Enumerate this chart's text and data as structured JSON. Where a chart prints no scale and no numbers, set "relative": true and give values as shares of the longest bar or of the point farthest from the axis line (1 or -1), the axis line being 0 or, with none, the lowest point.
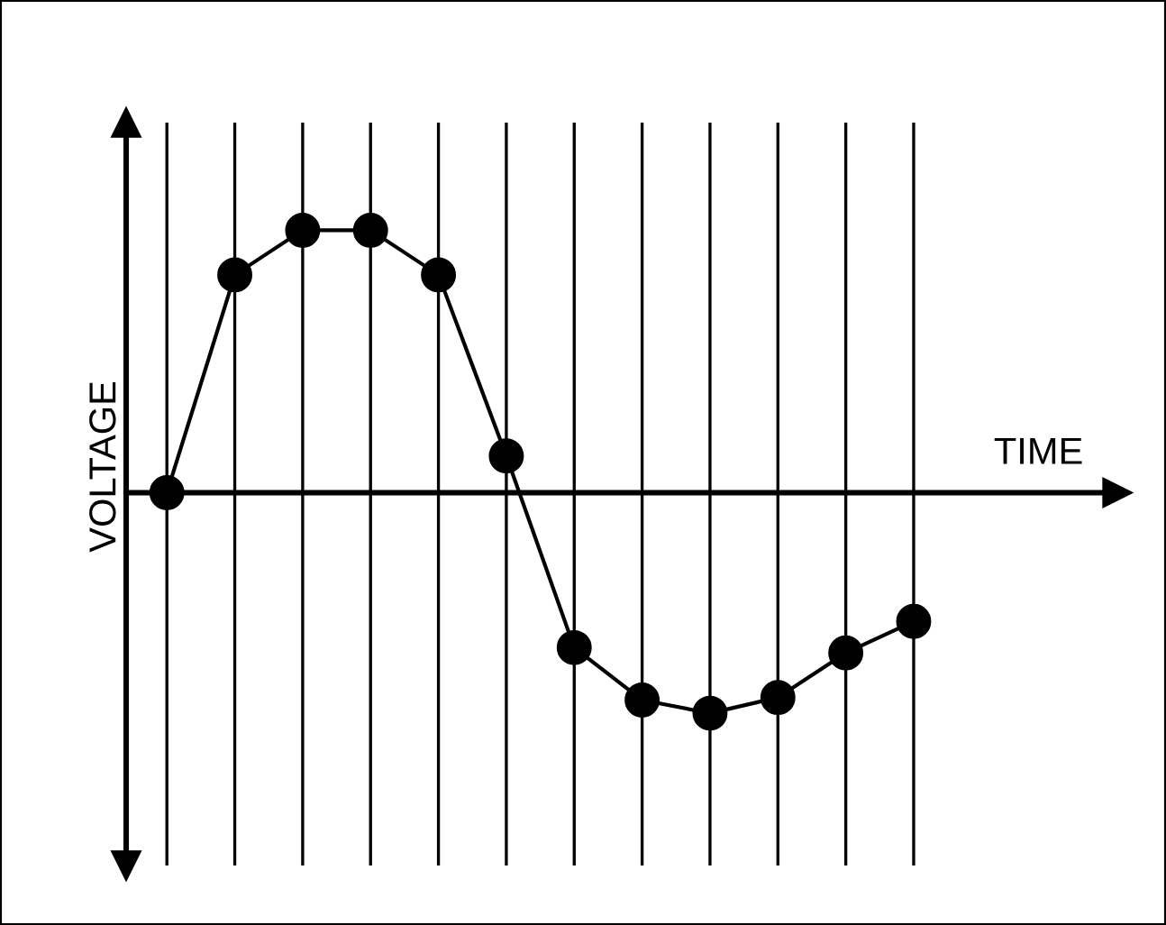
{
  "chart_data": {
    "type": "line",
    "relative": true,
    "xlabel": "TIME",
    "ylabel": "VOLTAGE",
    "grid": "x",
    "marker": "circle",
    "categories": [
      null,
      null,
      null,
      null,
      null,
      null,
      null,
      null,
      null,
      null,
      null,
      null
    ],
    "series": [
      {
        "color": "#000000",
        "values": [
          0,
          0.83,
          1,
          1,
          0.83,
          0.14,
          -0.59,
          -0.79,
          -0.84,
          -0.78,
          -0.61,
          -0.49
        ]
      }
    ]
  }
}
